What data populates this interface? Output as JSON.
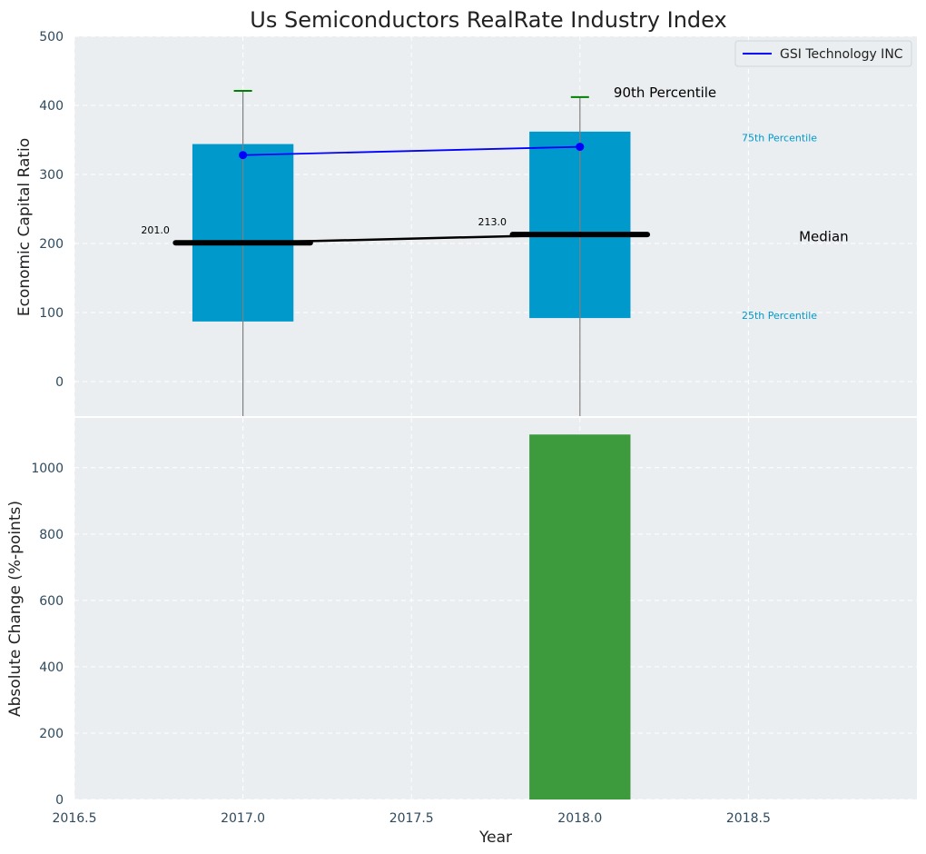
{
  "title": "Us Semiconductors RealRate Industry Index",
  "colors": {
    "panel_bg": "#eaeef0",
    "grid": "#ffffff",
    "tick_text": "#2e4a5e",
    "box": "#0099cc",
    "whisker": "#808080",
    "cap_90": "#008000",
    "median": "#000000",
    "company": "#0000ff",
    "change_bar": "#3d9a3d",
    "pct_label": "#0099cc"
  },
  "chart_data": [
    {
      "type": "box",
      "ylabel": "Economic Capital Ratio",
      "ylim": [
        -50,
        500
      ],
      "yticks": [
        0,
        100,
        200,
        300,
        400,
        500
      ],
      "x": [
        2017,
        2018
      ],
      "p25": [
        87,
        92
      ],
      "p75": [
        344,
        362
      ],
      "p90": [
        421,
        412
      ],
      "median": [
        201.0,
        213.0
      ],
      "median_labels": [
        "201.0",
        "213.0"
      ],
      "series": [
        {
          "name": "GSI Technology INC",
          "x": [
            2017,
            2018
          ],
          "values": [
            328,
            340
          ]
        }
      ],
      "legend_position": "top-right",
      "annotations": {
        "p90": "90th Percentile",
        "p75": "75th Percentile",
        "median": "Median",
        "p25": "25th Percentile"
      },
      "grid": true
    },
    {
      "type": "bar",
      "xlabel": "Year",
      "ylabel": "Absolute Change (%-points)",
      "xlim": [
        2016.5,
        2019.0
      ],
      "xticks": [
        2016.5,
        2017.0,
        2017.5,
        2018.0,
        2018.5
      ],
      "xtick_labels": [
        "2016.5",
        "2017.0",
        "2017.5",
        "2018.0",
        "2018.5"
      ],
      "ylim": [
        0,
        1150
      ],
      "yticks": [
        0,
        200,
        400,
        600,
        800,
        1000
      ],
      "x": [
        2018
      ],
      "values": [
        1100
      ],
      "grid": true
    }
  ]
}
